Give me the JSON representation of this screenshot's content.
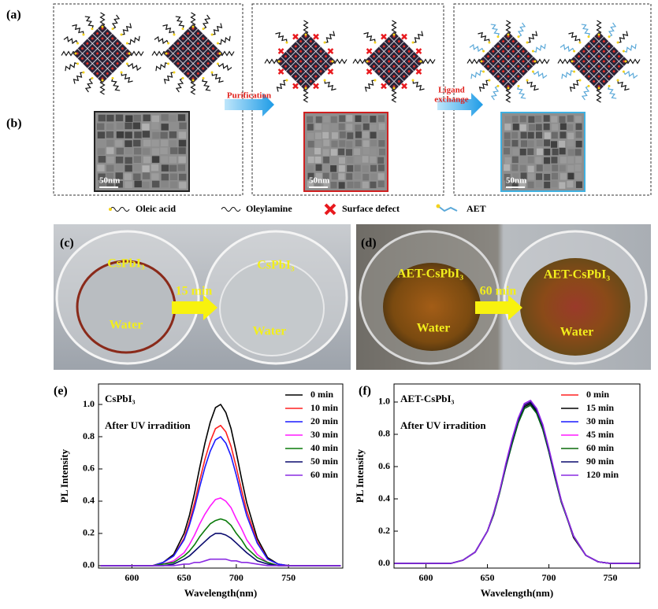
{
  "panel_labels": [
    "(a)",
    "(b)",
    "(c)",
    "(d)",
    "(e)",
    "(f)"
  ],
  "schematic": {
    "purification": "Purification",
    "ligand_exchange": [
      "Ligand",
      "exchange"
    ],
    "scale_bars": [
      "50nm",
      "50nm",
      "50nm"
    ],
    "legend": [
      "Oleic acid",
      "Oleylamine",
      "Surface defect",
      "AET"
    ]
  },
  "photos": {
    "c": {
      "before": "CsPbI₃",
      "before_solvent": "Water",
      "arrow": "15 min",
      "after": "CsPbI₃",
      "after_solvent": "Water"
    },
    "d": {
      "before": "AET-CsPbI₃",
      "before_solvent": "Water",
      "arrow": "60 min",
      "after": "AET-CsPbI₃",
      "after_solvent": "Water"
    }
  },
  "chart_data": [
    {
      "type": "line",
      "title": "CsPbI₃",
      "subtitle": "After UV irradition",
      "xlabel": "Wavelength(nm)",
      "ylabel": "PL Intensity",
      "x": [
        570,
        600,
        620,
        630,
        640,
        650,
        655,
        660,
        665,
        670,
        675,
        680,
        685,
        690,
        695,
        700,
        705,
        710,
        720,
        730,
        740,
        750,
        800
      ],
      "xlim": [
        568,
        802
      ],
      "ylim": [
        -0.015,
        1.127
      ],
      "xticks": [
        600,
        650,
        700,
        750
      ],
      "yticks": [
        {
          "value": 0,
          "label": "0.0"
        },
        {
          "value": 0.2,
          "label": "0.2"
        },
        {
          "value": 0.4,
          "label": "0.4"
        },
        {
          "value": 0.6,
          "label": "0.6"
        },
        {
          "value": 0.8,
          "label": "0.8"
        },
        {
          "value": 1,
          "label": "1.0"
        }
      ],
      "series": [
        {
          "name": "0 min",
          "color": "#000000",
          "values": [
            0,
            0,
            0,
            0.02,
            0.07,
            0.2,
            0.31,
            0.45,
            0.61,
            0.76,
            0.89,
            0.98,
            1.0,
            0.95,
            0.85,
            0.7,
            0.54,
            0.39,
            0.17,
            0.05,
            0.01,
            0,
            0
          ]
        },
        {
          "name": "10 min",
          "color": "#ff2020",
          "values": [
            0,
            0,
            0,
            0.02,
            0.06,
            0.17,
            0.27,
            0.39,
            0.53,
            0.66,
            0.77,
            0.85,
            0.87,
            0.83,
            0.74,
            0.61,
            0.47,
            0.34,
            0.15,
            0.04,
            0.01,
            0,
            0
          ]
        },
        {
          "name": "20 min",
          "color": "#1a1aff",
          "values": [
            0,
            0,
            0,
            0.02,
            0.06,
            0.16,
            0.25,
            0.36,
            0.49,
            0.61,
            0.71,
            0.78,
            0.8,
            0.76,
            0.68,
            0.56,
            0.43,
            0.31,
            0.14,
            0.04,
            0.01,
            0,
            0
          ]
        },
        {
          "name": "30 min",
          "color": "#ff1aff",
          "values": [
            0,
            0,
            0,
            0.01,
            0.03,
            0.08,
            0.13,
            0.19,
            0.26,
            0.32,
            0.37,
            0.41,
            0.42,
            0.4,
            0.36,
            0.29,
            0.23,
            0.16,
            0.07,
            0.02,
            0,
            0,
            0
          ]
        },
        {
          "name": "40 min",
          "color": "#0a7a0a",
          "values": [
            0,
            0,
            0,
            0.01,
            0.02,
            0.06,
            0.09,
            0.13,
            0.18,
            0.22,
            0.26,
            0.28,
            0.29,
            0.28,
            0.25,
            0.2,
            0.16,
            0.11,
            0.05,
            0.02,
            0,
            0,
            0
          ]
        },
        {
          "name": "50 min",
          "color": "#0a0a6e",
          "values": [
            0,
            0,
            0,
            0,
            0.01,
            0.04,
            0.06,
            0.09,
            0.12,
            0.15,
            0.18,
            0.2,
            0.2,
            0.19,
            0.17,
            0.14,
            0.11,
            0.08,
            0.03,
            0.01,
            0,
            0,
            0
          ]
        },
        {
          "name": "60 min",
          "color": "#8a2be2",
          "values": [
            0,
            0,
            0,
            0,
            0,
            0.01,
            0.01,
            0.02,
            0.02,
            0.03,
            0.04,
            0.04,
            0.04,
            0.04,
            0.03,
            0.03,
            0.02,
            0.02,
            0.01,
            0,
            0,
            0,
            0
          ]
        }
      ]
    },
    {
      "type": "line",
      "title": "AET-CsPbI₃",
      "subtitle": "After UV irradition",
      "xlabel": "Wavelength(nm)",
      "ylabel": "PL Intensity",
      "x": [
        570,
        600,
        620,
        630,
        640,
        650,
        655,
        660,
        665,
        670,
        675,
        680,
        685,
        690,
        695,
        700,
        705,
        710,
        720,
        730,
        740,
        750,
        800
      ],
      "xlim": [
        574,
        774
      ],
      "ylim": [
        -0.029,
        1.112
      ],
      "xticks": [
        600,
        650,
        700,
        750
      ],
      "yticks": [
        {
          "value": 0,
          "label": "0.0"
        },
        {
          "value": 0.2,
          "label": "0.2"
        },
        {
          "value": 0.4,
          "label": "0.4"
        },
        {
          "value": 0.6,
          "label": "0.6"
        },
        {
          "value": 0.8,
          "label": "0.8"
        },
        {
          "value": 1,
          "label": "1.0"
        }
      ],
      "series": [
        {
          "name": "0 min",
          "color": "#ff2020",
          "values": [
            0,
            0,
            0,
            0.02,
            0.07,
            0.2,
            0.31,
            0.45,
            0.61,
            0.76,
            0.89,
            0.98,
            1.0,
            0.95,
            0.85,
            0.7,
            0.54,
            0.39,
            0.17,
            0.05,
            0.01,
            0,
            0
          ]
        },
        {
          "name": "15 min",
          "color": "#000000",
          "values": [
            0,
            0,
            0,
            0.02,
            0.07,
            0.2,
            0.31,
            0.45,
            0.6,
            0.75,
            0.88,
            0.97,
            0.99,
            0.94,
            0.84,
            0.69,
            0.53,
            0.39,
            0.16,
            0.05,
            0.01,
            0,
            0
          ]
        },
        {
          "name": "30 min",
          "color": "#1a1aff",
          "values": [
            0,
            0,
            0,
            0.02,
            0.07,
            0.2,
            0.3,
            0.44,
            0.6,
            0.74,
            0.87,
            0.96,
            0.98,
            0.93,
            0.83,
            0.69,
            0.53,
            0.38,
            0.17,
            0.05,
            0.01,
            0,
            0
          ]
        },
        {
          "name": "45 min",
          "color": "#ff1aff",
          "values": [
            0,
            0,
            0,
            0.02,
            0.07,
            0.2,
            0.31,
            0.45,
            0.62,
            0.77,
            0.9,
            0.99,
            1.01,
            0.96,
            0.86,
            0.71,
            0.55,
            0.39,
            0.17,
            0.05,
            0.01,
            0,
            0
          ]
        },
        {
          "name": "60 min",
          "color": "#0a6a0a",
          "values": [
            0,
            0,
            0,
            0.02,
            0.07,
            0.2,
            0.3,
            0.44,
            0.6,
            0.74,
            0.87,
            0.96,
            0.98,
            0.93,
            0.83,
            0.69,
            0.53,
            0.38,
            0.17,
            0.05,
            0.01,
            0,
            0
          ]
        },
        {
          "name": "90 min",
          "color": "#0a0a6e",
          "values": [
            0,
            0,
            0,
            0.02,
            0.07,
            0.2,
            0.31,
            0.45,
            0.61,
            0.76,
            0.89,
            0.98,
            1.0,
            0.95,
            0.85,
            0.7,
            0.54,
            0.39,
            0.17,
            0.05,
            0.01,
            0,
            0
          ]
        },
        {
          "name": "120 min",
          "color": "#8a2be2",
          "values": [
            0,
            0,
            0,
            0.02,
            0.07,
            0.2,
            0.31,
            0.45,
            0.62,
            0.77,
            0.9,
            0.99,
            1.01,
            0.96,
            0.86,
            0.71,
            0.55,
            0.39,
            0.17,
            0.05,
            0.01,
            0,
            0
          ]
        }
      ]
    }
  ]
}
